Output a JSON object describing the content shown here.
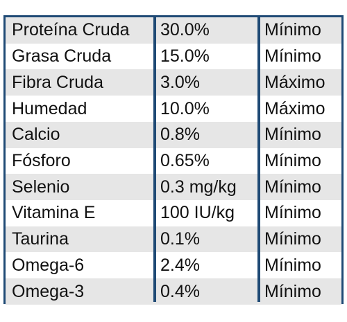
{
  "table": {
    "rows": [
      {
        "nutrient": "Proteína Cruda",
        "value": "30.0%",
        "level": "Mínimo"
      },
      {
        "nutrient": "Grasa Cruda",
        "value": "15.0%",
        "level": "Mínimo"
      },
      {
        "nutrient": "Fibra Cruda",
        "value": "3.0%",
        "level": "Máximo"
      },
      {
        "nutrient": "Humedad",
        "value": "10.0%",
        "level": "Máximo"
      },
      {
        "nutrient": "Calcio",
        "value": "0.8%",
        "level": "Mínimo"
      },
      {
        "nutrient": "Fósforo",
        "value": "0.65%",
        "level": "Mínimo"
      },
      {
        "nutrient": "Selenio",
        "value": "0.3 mg/kg",
        "level": "Mínimo"
      },
      {
        "nutrient": "Vitamina E",
        "value": "100 IU/kg",
        "level": "Mínimo"
      },
      {
        "nutrient": "Taurina",
        "value": "0.1%",
        "level": "Mínimo"
      },
      {
        "nutrient": "Omega-6",
        "value": "2.4%",
        "level": "Mínimo"
      },
      {
        "nutrient": "Omega-3",
        "value": "0.4%",
        "level": "Mínimo"
      }
    ]
  },
  "colors": {
    "border": "#1f4a75",
    "row_shade": "#e6e6e6"
  }
}
